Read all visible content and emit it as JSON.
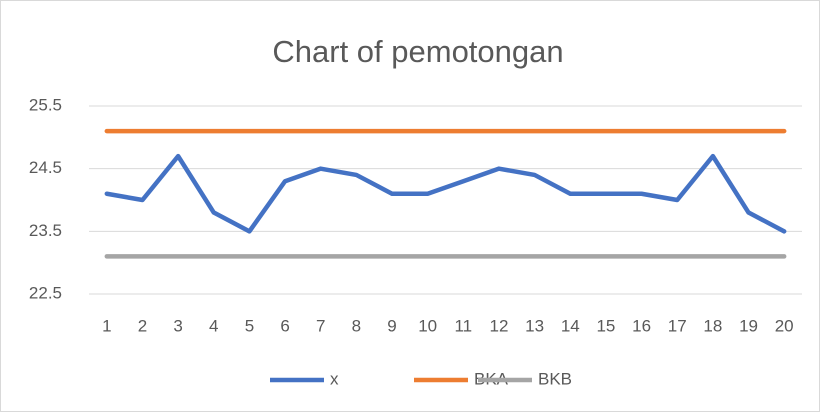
{
  "chart_data": {
    "type": "line",
    "title": "Chart of pemotongan",
    "categories": [
      "1",
      "2",
      "3",
      "4",
      "5",
      "6",
      "7",
      "8",
      "9",
      "10",
      "11",
      "12",
      "13",
      "14",
      "15",
      "16",
      "17",
      "18",
      "19",
      "20"
    ],
    "series": [
      {
        "name": "x",
        "color": "#4472c4",
        "values": [
          24.1,
          24.0,
          24.7,
          23.8,
          23.5,
          24.3,
          24.5,
          24.4,
          24.1,
          24.1,
          24.3,
          24.5,
          24.4,
          24.1,
          24.1,
          24.1,
          24.0,
          24.7,
          23.8,
          23.5
        ]
      },
      {
        "name": "BKA",
        "color": "#ed7d31",
        "values": [
          25.1,
          25.1,
          25.1,
          25.1,
          25.1,
          25.1,
          25.1,
          25.1,
          25.1,
          25.1,
          25.1,
          25.1,
          25.1,
          25.1,
          25.1,
          25.1,
          25.1,
          25.1,
          25.1,
          25.1
        ]
      },
      {
        "name": "BKB",
        "color": "#a5a5a5",
        "values": [
          23.1,
          23.1,
          23.1,
          23.1,
          23.1,
          23.1,
          23.1,
          23.1,
          23.1,
          23.1,
          23.1,
          23.1,
          23.1,
          23.1,
          23.1,
          23.1,
          23.1,
          23.1,
          23.1,
          23.1
        ]
      }
    ],
    "ylim": [
      22.5,
      25.5
    ],
    "yticks": [
      22.5,
      23.5,
      24.5,
      25.5
    ],
    "grid": true,
    "legend": "bottom"
  }
}
